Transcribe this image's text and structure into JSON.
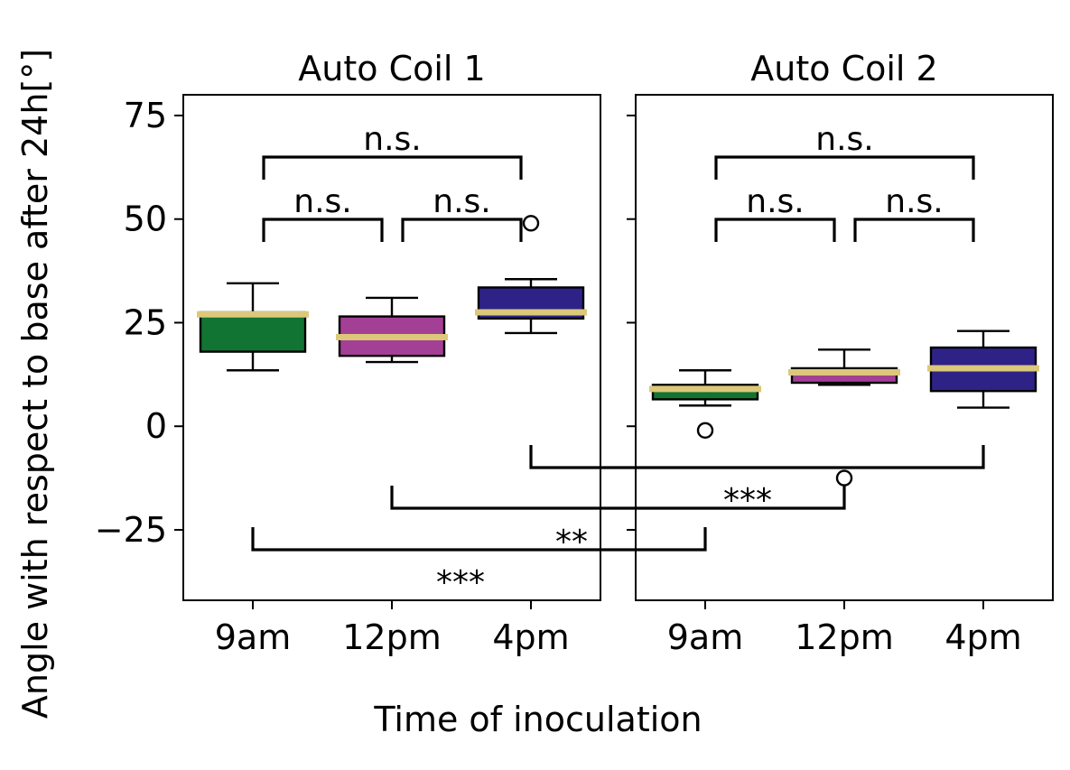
{
  "colors": {
    "9am": "#127432",
    "12pm": "#a43f96",
    "4pm": "#2f2287",
    "median": "#dcc87a"
  },
  "chart_data": {
    "type": "box",
    "xlabel": "Time of inoculation",
    "ylabel": "Angle with respect to base after 24h[°]",
    "ylim": [
      -42,
      80
    ],
    "yticks": [
      -25,
      0,
      25,
      50,
      75
    ],
    "ytick_labels": [
      "−25",
      "0",
      "25",
      "50",
      "75"
    ],
    "categories": [
      "9am",
      "12pm",
      "4pm"
    ],
    "panels": [
      {
        "title": "Auto Coil 1",
        "boxes": [
          {
            "category": "9am",
            "whislo": 13.5,
            "q1": 18,
            "med": 27,
            "q3": 27.5,
            "whishi": 34.5,
            "fliers": []
          },
          {
            "category": "12pm",
            "whislo": 15.5,
            "q1": 17,
            "med": 21.5,
            "q3": 26.5,
            "whishi": 31,
            "fliers": []
          },
          {
            "category": "4pm",
            "whislo": 22.5,
            "q1": 26,
            "med": 27.5,
            "q3": 33.5,
            "whishi": 35.5,
            "fliers": [
              49
            ]
          }
        ],
        "comparisons": [
          {
            "a": 0,
            "b": 1,
            "label": "n.s."
          },
          {
            "a": 1,
            "b": 2,
            "label": "n.s."
          },
          {
            "a": 0,
            "b": 2,
            "label": "n.s."
          }
        ]
      },
      {
        "title": "Auto Coil 2",
        "boxes": [
          {
            "category": "9am",
            "whislo": 5,
            "q1": 6.5,
            "med": 9,
            "q3": 10,
            "whishi": 13.5,
            "fliers": [
              -1
            ]
          },
          {
            "category": "12pm",
            "whislo": 10,
            "q1": 10.5,
            "med": 13,
            "q3": 14,
            "whishi": 18.5,
            "fliers": [
              -12.5
            ]
          },
          {
            "category": "4pm",
            "whislo": 4.5,
            "q1": 8.5,
            "med": 14,
            "q3": 19,
            "whishi": 23,
            "fliers": []
          }
        ],
        "comparisons": [
          {
            "a": 0,
            "b": 1,
            "label": "n.s."
          },
          {
            "a": 1,
            "b": 2,
            "label": "n.s."
          },
          {
            "a": 0,
            "b": 2,
            "label": "n.s."
          }
        ]
      }
    ],
    "cross_comparisons": [
      {
        "category": "4pm",
        "label": "**"
      },
      {
        "category": "12pm",
        "label": "***"
      },
      {
        "category": "9am",
        "label": "***"
      }
    ]
  }
}
